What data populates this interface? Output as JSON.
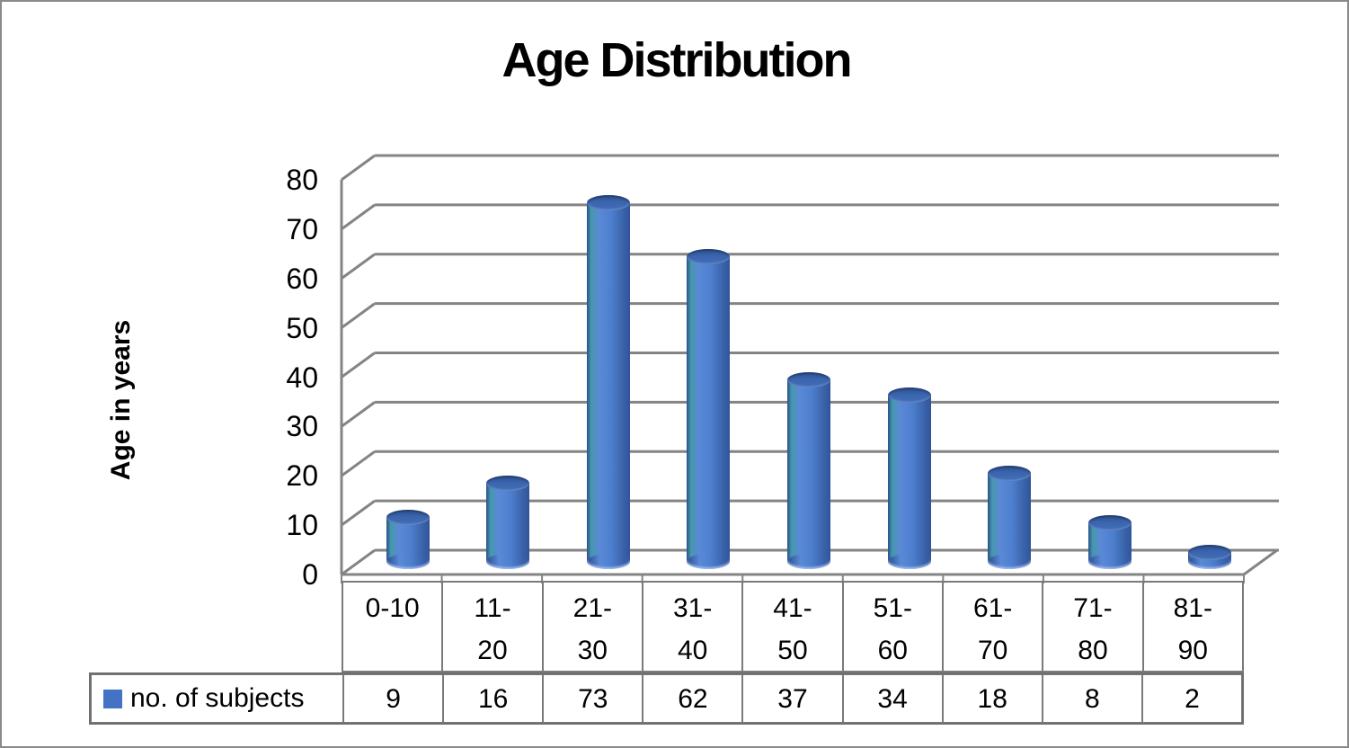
{
  "window": {
    "background": "#ffffff",
    "outer_border_color": "#8a8a8a"
  },
  "chart_data": {
    "type": "bar",
    "subtype": "3d-cylinder-column",
    "title": "Age Distribution",
    "y_axis_title": "Age in years",
    "xlabel": "",
    "categories": [
      "0-10",
      "11-20",
      "21-30",
      "31-40",
      "41-50",
      "51-60",
      "61-70",
      "71-80",
      "81-90"
    ],
    "categories_display": [
      "0-10",
      "11-\n20",
      "21-\n30",
      "31-\n40",
      "41-\n50",
      "51-\n60",
      "61-\n70",
      "71-\n80",
      "81-\n90"
    ],
    "series": [
      {
        "name": "no. of subjects",
        "values": [
          9,
          16,
          73,
          62,
          37,
          34,
          18,
          8,
          2
        ]
      }
    ],
    "ylim": [
      0,
      80
    ],
    "y_ticks": [
      0,
      10,
      20,
      30,
      40,
      50,
      60,
      70,
      80
    ],
    "grid": true,
    "legend_position": "bottom-data-table",
    "data_table_shown": true,
    "colors": {
      "series_fill": "#4472C4",
      "bar_body_gradient": [
        "#2B4E8E",
        "#5A89D6",
        "#4E80D0",
        "#30549A"
      ],
      "bar_top_fill": "#3A64AD",
      "gridline": "#848484",
      "table_border": "#7A7A7A",
      "text": "#000000"
    }
  }
}
